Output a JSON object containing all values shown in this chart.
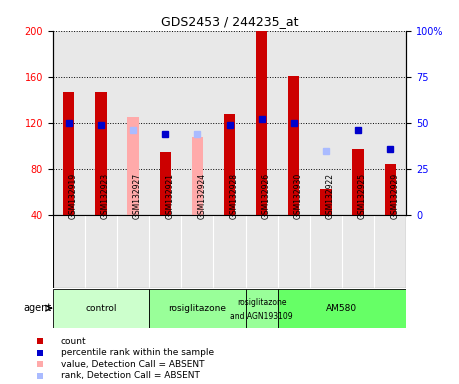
{
  "title": "GDS2453 / 244235_at",
  "samples": [
    "GSM132919",
    "GSM132923",
    "GSM132927",
    "GSM132921",
    "GSM132924",
    "GSM132928",
    "GSM132926",
    "GSM132930",
    "GSM132922",
    "GSM132925",
    "GSM132929"
  ],
  "count_values": [
    147,
    147,
    null,
    95,
    null,
    128,
    200,
    161,
    63,
    97,
    84
  ],
  "count_absent": [
    null,
    null,
    125,
    null,
    108,
    null,
    null,
    null,
    null,
    null,
    null
  ],
  "rank_values": [
    121,
    119,
    null,
    107,
    null,
    118,
    125,
    120,
    null,
    112,
    null
  ],
  "rank_absent": [
    null,
    null,
    113,
    null,
    108,
    null,
    null,
    null,
    null,
    null,
    null
  ],
  "percentile_values": [
    50,
    49,
    null,
    44,
    null,
    49,
    52,
    50,
    null,
    46,
    36
  ],
  "percentile_absent": [
    null,
    null,
    46,
    null,
    44,
    null,
    null,
    null,
    35,
    null,
    null
  ],
  "agent_groups": [
    {
      "label": "control",
      "start": 0,
      "end": 3,
      "color": "#ccffcc"
    },
    {
      "label": "rosiglitazone",
      "start": 3,
      "end": 6,
      "color": "#99ff99"
    },
    {
      "label": "rosiglitazone\nand AGN193109",
      "start": 6,
      "end": 7,
      "color": "#99ff99"
    },
    {
      "label": "AM580",
      "start": 7,
      "end": 11,
      "color": "#66ff66"
    }
  ],
  "ylim_left": [
    40,
    200
  ],
  "ylim_right": [
    0,
    100
  ],
  "bar_width": 0.35,
  "count_color": "#cc0000",
  "count_absent_color": "#ffaaaa",
  "rank_color": "#aabbff",
  "percentile_color": "#0000cc",
  "plot_bg": "#e8e8e8"
}
